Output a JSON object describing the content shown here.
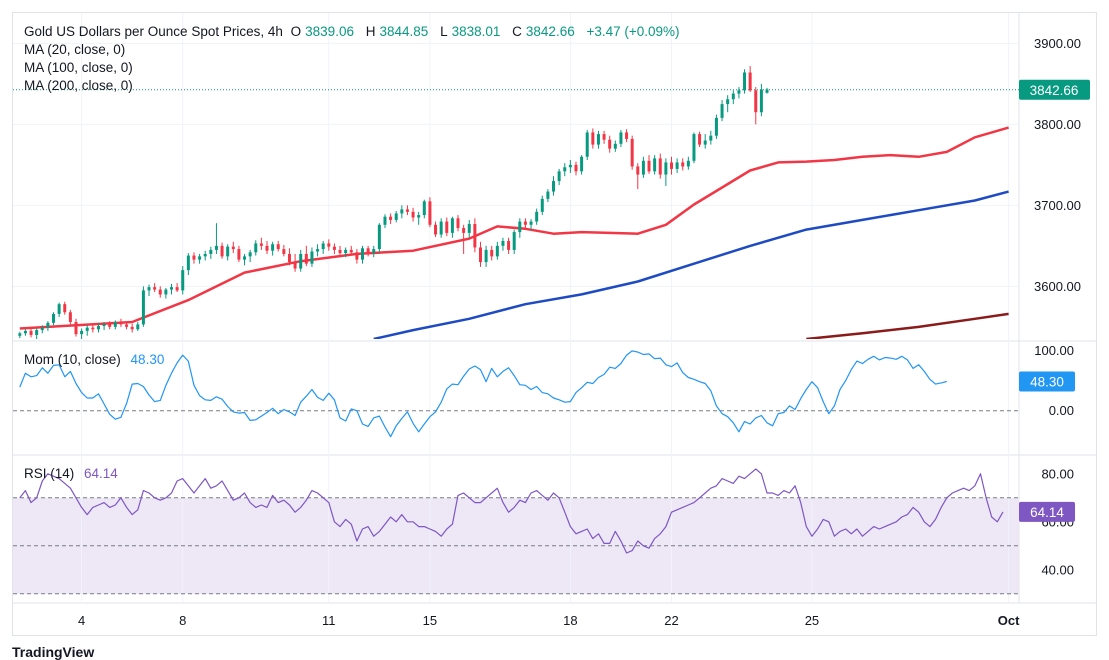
{
  "header": {
    "symbol": "Gold US Dollars per Ounce Spot Prices, 4h",
    "open_label": "O",
    "open": "3839.06",
    "high_label": "H",
    "high": "3844.85",
    "low_label": "L",
    "low": "3838.01",
    "close_label": "C",
    "close": "3842.66",
    "change": "+3.47 (+0.09%)",
    "ma20_label": "MA (20, close, 0)",
    "ma100_label": "MA (100, close, 0)",
    "ma200_label": "MA (200, close, 0)"
  },
  "colors": {
    "up": "#089981",
    "down": "#f23645",
    "ma20": "#f23645",
    "ma100": "#1e4bc3",
    "ma200": "#8b1a1a",
    "momentum": "#2196f3",
    "rsi": "#7e57c2",
    "rsi_band": "#ede7f6"
  },
  "footer": {
    "brand": "TradingView"
  },
  "chart_data": [
    {
      "type": "candlestick",
      "title": "Gold US Dollars per Ounce Spot Prices, 4h",
      "ylim": [
        3535,
        3935
      ],
      "y_ticks": [
        "3900.00",
        "3800.00",
        "3700.00",
        "3600.00"
      ],
      "y_tick_values": [
        3900,
        3800,
        3700,
        3600
      ],
      "x_ticks": [
        "4",
        "8",
        "11",
        "15",
        "18",
        "22",
        "25",
        "Oct"
      ],
      "x_tick_index": [
        11,
        29,
        55,
        73,
        98,
        116,
        141,
        176
      ],
      "last_price": "3842.66",
      "last_price_value": 3842.66,
      "candles": [
        [
          3539,
          3544,
          3536,
          3542
        ],
        [
          3542,
          3547,
          3539,
          3545
        ],
        [
          3545,
          3549,
          3537,
          3540
        ],
        [
          3540,
          3548,
          3535,
          3546
        ],
        [
          3546,
          3552,
          3542,
          3549
        ],
        [
          3549,
          3557,
          3545,
          3555
        ],
        [
          3555,
          3568,
          3552,
          3566
        ],
        [
          3566,
          3580,
          3562,
          3578
        ],
        [
          3578,
          3581,
          3565,
          3568
        ],
        [
          3568,
          3571,
          3553,
          3556
        ],
        [
          3556,
          3560,
          3538,
          3541
        ],
        [
          3541,
          3548,
          3534,
          3545
        ],
        [
          3545,
          3552,
          3539,
          3549
        ],
        [
          3549,
          3553,
          3543,
          3547
        ],
        [
          3547,
          3555,
          3543,
          3551
        ],
        [
          3551,
          3556,
          3546,
          3553
        ],
        [
          3553,
          3557,
          3547,
          3550
        ],
        [
          3550,
          3558,
          3547,
          3556
        ],
        [
          3556,
          3560,
          3550,
          3553
        ],
        [
          3553,
          3556,
          3547,
          3550
        ],
        [
          3550,
          3554,
          3543,
          3547
        ],
        [
          3547,
          3556,
          3545,
          3553
        ],
        [
          3553,
          3600,
          3550,
          3595
        ],
        [
          3595,
          3602,
          3588,
          3599
        ],
        [
          3599,
          3604,
          3593,
          3596
        ],
        [
          3596,
          3600,
          3586,
          3590
        ],
        [
          3590,
          3598,
          3585,
          3596
        ],
        [
          3596,
          3603,
          3590,
          3599
        ],
        [
          3599,
          3604,
          3593,
          3595
        ],
        [
          3595,
          3625,
          3590,
          3620
        ],
        [
          3620,
          3641,
          3614,
          3638
        ],
        [
          3638,
          3642,
          3628,
          3633
        ],
        [
          3633,
          3640,
          3628,
          3637
        ],
        [
          3637,
          3644,
          3632,
          3640
        ],
        [
          3640,
          3649,
          3634,
          3645
        ],
        [
          3645,
          3678,
          3640,
          3650
        ],
        [
          3650,
          3654,
          3634,
          3637
        ],
        [
          3637,
          3652,
          3632,
          3649
        ],
        [
          3649,
          3655,
          3641,
          3646
        ],
        [
          3646,
          3650,
          3630,
          3633
        ],
        [
          3633,
          3640,
          3626,
          3637
        ],
        [
          3637,
          3645,
          3630,
          3642
        ],
        [
          3642,
          3657,
          3638,
          3653
        ],
        [
          3653,
          3660,
          3645,
          3650
        ],
        [
          3650,
          3656,
          3640,
          3644
        ],
        [
          3644,
          3655,
          3638,
          3652
        ],
        [
          3652,
          3656,
          3643,
          3646
        ],
        [
          3646,
          3651,
          3637,
          3640
        ],
        [
          3640,
          3647,
          3626,
          3630
        ],
        [
          3630,
          3640,
          3618,
          3622
        ],
        [
          3622,
          3645,
          3618,
          3640
        ],
        [
          3640,
          3650,
          3625,
          3628
        ],
        [
          3628,
          3648,
          3624,
          3643
        ],
        [
          3643,
          3652,
          3637,
          3646
        ],
        [
          3646,
          3656,
          3640,
          3653
        ],
        [
          3653,
          3658,
          3644,
          3649
        ],
        [
          3649,
          3653,
          3640,
          3645
        ],
        [
          3645,
          3650,
          3637,
          3641
        ],
        [
          3641,
          3648,
          3636,
          3645
        ],
        [
          3645,
          3650,
          3638,
          3642
        ],
        [
          3642,
          3646,
          3628,
          3633
        ],
        [
          3633,
          3650,
          3628,
          3647
        ],
        [
          3647,
          3650,
          3637,
          3641
        ],
        [
          3641,
          3650,
          3636,
          3646
        ],
        [
          3646,
          3678,
          3641,
          3676
        ],
        [
          3676,
          3689,
          3672,
          3686
        ],
        [
          3686,
          3690,
          3677,
          3682
        ],
        [
          3682,
          3693,
          3679,
          3690
        ],
        [
          3690,
          3700,
          3684,
          3695
        ],
        [
          3695,
          3700,
          3688,
          3692
        ],
        [
          3692,
          3697,
          3680,
          3685
        ],
        [
          3685,
          3692,
          3676,
          3688
        ],
        [
          3688,
          3707,
          3684,
          3705
        ],
        [
          3705,
          3710,
          3673,
          3676
        ],
        [
          3676,
          3680,
          3661,
          3664
        ],
        [
          3664,
          3684,
          3660,
          3680
        ],
        [
          3680,
          3685,
          3662,
          3666
        ],
        [
          3666,
          3686,
          3660,
          3684
        ],
        [
          3684,
          3688,
          3668,
          3672
        ],
        [
          3672,
          3676,
          3640,
          3666
        ],
        [
          3666,
          3682,
          3660,
          3677
        ],
        [
          3677,
          3684,
          3642,
          3648
        ],
        [
          3648,
          3655,
          3624,
          3630
        ],
        [
          3630,
          3650,
          3624,
          3645
        ],
        [
          3645,
          3650,
          3632,
          3637
        ],
        [
          3637,
          3655,
          3633,
          3650
        ],
        [
          3650,
          3660,
          3644,
          3656
        ],
        [
          3656,
          3660,
          3640,
          3645
        ],
        [
          3645,
          3670,
          3640,
          3667
        ],
        [
          3667,
          3684,
          3660,
          3680
        ],
        [
          3680,
          3684,
          3672,
          3676
        ],
        [
          3676,
          3683,
          3670,
          3680
        ],
        [
          3680,
          3696,
          3676,
          3692
        ],
        [
          3692,
          3712,
          3688,
          3708
        ],
        [
          3708,
          3720,
          3704,
          3717
        ],
        [
          3717,
          3736,
          3712,
          3730
        ],
        [
          3730,
          3745,
          3725,
          3742
        ],
        [
          3742,
          3752,
          3736,
          3747
        ],
        [
          3747,
          3756,
          3740,
          3750
        ],
        [
          3750,
          3754,
          3737,
          3742
        ],
        [
          3742,
          3762,
          3738,
          3760
        ],
        [
          3760,
          3793,
          3756,
          3790
        ],
        [
          3790,
          3795,
          3770,
          3775
        ],
        [
          3775,
          3792,
          3770,
          3788
        ],
        [
          3788,
          3792,
          3776,
          3781
        ],
        [
          3781,
          3786,
          3765,
          3770
        ],
        [
          3770,
          3780,
          3766,
          3776
        ],
        [
          3776,
          3793,
          3772,
          3790
        ],
        [
          3790,
          3794,
          3778,
          3782
        ],
        [
          3782,
          3786,
          3744,
          3748
        ],
        [
          3748,
          3752,
          3720,
          3738
        ],
        [
          3738,
          3760,
          3734,
          3755
        ],
        [
          3755,
          3762,
          3739,
          3742
        ],
        [
          3742,
          3762,
          3738,
          3758
        ],
        [
          3758,
          3764,
          3733,
          3738
        ],
        [
          3738,
          3758,
          3724,
          3753
        ],
        [
          3753,
          3760,
          3738,
          3745
        ],
        [
          3745,
          3758,
          3740,
          3753
        ],
        [
          3753,
          3758,
          3743,
          3748
        ],
        [
          3748,
          3760,
          3744,
          3755
        ],
        [
          3755,
          3790,
          3752,
          3788
        ],
        [
          3788,
          3791,
          3772,
          3775
        ],
        [
          3775,
          3788,
          3770,
          3780
        ],
        [
          3780,
          3792,
          3775,
          3786
        ],
        [
          3786,
          3812,
          3782,
          3808
        ],
        [
          3808,
          3830,
          3804,
          3825
        ],
        [
          3825,
          3836,
          3815,
          3831
        ],
        [
          3831,
          3842,
          3825,
          3838
        ],
        [
          3838,
          3846,
          3832,
          3842
        ],
        [
          3842,
          3868,
          3838,
          3864
        ],
        [
          3864,
          3872,
          3840,
          3842
        ],
        [
          3842,
          3846,
          3800,
          3815
        ],
        [
          3815,
          3850,
          3810,
          3843
        ],
        [
          3839,
          3845,
          3838,
          3843
        ]
      ],
      "ma20": [
        [
          0,
          3548
        ],
        [
          10,
          3552
        ],
        [
          20,
          3556
        ],
        [
          30,
          3583
        ],
        [
          40,
          3617
        ],
        [
          50,
          3631
        ],
        [
          60,
          3640
        ],
        [
          70,
          3644
        ],
        [
          80,
          3659
        ],
        [
          85,
          3674
        ],
        [
          90,
          3671
        ],
        [
          95,
          3665
        ],
        [
          100,
          3667
        ],
        [
          105,
          3666
        ],
        [
          110,
          3665
        ],
        [
          115,
          3676
        ],
        [
          120,
          3701
        ],
        [
          125,
          3722
        ],
        [
          130,
          3743
        ],
        [
          135,
          3753
        ],
        [
          140,
          3754
        ],
        [
          145,
          3756
        ],
        [
          150,
          3760
        ],
        [
          155,
          3762
        ],
        [
          160,
          3760
        ],
        [
          165,
          3766
        ],
        [
          170,
          3784
        ],
        [
          176,
          3796
        ]
      ],
      "ma100": [
        [
          63,
          3535
        ],
        [
          70,
          3546
        ],
        [
          80,
          3560
        ],
        [
          90,
          3578
        ],
        [
          100,
          3590
        ],
        [
          110,
          3606
        ],
        [
          120,
          3628
        ],
        [
          130,
          3650
        ],
        [
          140,
          3670
        ],
        [
          150,
          3682
        ],
        [
          160,
          3694
        ],
        [
          170,
          3706
        ],
        [
          176,
          3717
        ]
      ],
      "ma200": [
        [
          140,
          3535
        ],
        [
          150,
          3542
        ],
        [
          160,
          3550
        ],
        [
          170,
          3560
        ],
        [
          176,
          3566
        ]
      ]
    },
    {
      "type": "line",
      "title": "Mom (10, close)",
      "last_value": "48.30",
      "last_value_num": 48.3,
      "ylim": [
        -70,
        112
      ],
      "y_ticks": [
        "100.00",
        "0.00"
      ],
      "y_tick_values": [
        100,
        0
      ],
      "zero_line": 0,
      "values": [
        39,
        62,
        56,
        58,
        71,
        62,
        75,
        76,
        56,
        65,
        45,
        30,
        21,
        21,
        28,
        11,
        -6,
        -14,
        -11,
        12,
        44,
        45,
        40,
        26,
        15,
        17,
        42,
        62,
        79,
        92,
        82,
        42,
        25,
        18,
        17,
        23,
        19,
        7,
        -2,
        -4,
        -3,
        -16,
        -15,
        -9,
        -3,
        4,
        -5,
        2,
        -2,
        -8,
        14,
        24,
        35,
        22,
        17,
        29,
        18,
        -12,
        -17,
        3,
        0,
        -22,
        -26,
        -12,
        -9,
        -27,
        -43,
        -25,
        -13,
        -2,
        -21,
        -35,
        -22,
        -10,
        -2,
        14,
        36,
        44,
        43,
        57,
        69,
        74,
        68,
        48,
        70,
        56,
        65,
        71,
        58,
        43,
        42,
        35,
        40,
        30,
        28,
        21,
        18,
        14,
        15,
        30,
        38,
        47,
        45,
        55,
        60,
        72,
        70,
        78,
        92,
        99,
        97,
        93,
        94,
        86,
        87,
        76,
        73,
        79,
        63,
        55,
        52,
        48,
        45,
        33,
        8,
        -5,
        -10,
        -20,
        -35,
        -18,
        -22,
        -12,
        -8,
        -20,
        -25,
        -5,
        -3,
        8,
        2,
        20,
        35,
        48,
        38,
        15,
        -5,
        8,
        35,
        50,
        68,
        82,
        78,
        85,
        90,
        84,
        88,
        87,
        85,
        90,
        84,
        70,
        76,
        65,
        52,
        44,
        46,
        48.3
      ]
    },
    {
      "type": "line",
      "title": "RSI (14)",
      "last_value": "64.14",
      "last_value_num": 64.14,
      "ylim": [
        27,
        87
      ],
      "y_ticks": [
        "80.00",
        "60.00",
        "40.00"
      ],
      "y_tick_values": [
        80,
        60,
        40
      ],
      "band": [
        30,
        70
      ],
      "midline": 50,
      "values": [
        70,
        73,
        68,
        70,
        77,
        80,
        79,
        78,
        76,
        74,
        70,
        66,
        63,
        66,
        67,
        68,
        66,
        67,
        70,
        66,
        63,
        65,
        73,
        72,
        70,
        69,
        70,
        72,
        77,
        78,
        75,
        72,
        75,
        78,
        74,
        75,
        77,
        73,
        69,
        70,
        72,
        68,
        66,
        67,
        66,
        71,
        68,
        69,
        67,
        64,
        66,
        69,
        73,
        72,
        70,
        68,
        60,
        58,
        61,
        59,
        52,
        57,
        58,
        54,
        56,
        59,
        62,
        60,
        63,
        60,
        60,
        58,
        58,
        57,
        56,
        54,
        57,
        59,
        71,
        72,
        70,
        68,
        68,
        70,
        72,
        74,
        68,
        64,
        66,
        69,
        68,
        72,
        73,
        71,
        69,
        72,
        70,
        64,
        58,
        55,
        56,
        57,
        53,
        55,
        51,
        51,
        56,
        52,
        47,
        48,
        52,
        50,
        49,
        53,
        55,
        58,
        64,
        65,
        66,
        67,
        68,
        70,
        72,
        74,
        75,
        78,
        77,
        76,
        79,
        78,
        80,
        82,
        80,
        72,
        72,
        71,
        73,
        72,
        75,
        68,
        58,
        54,
        57,
        61,
        60,
        54,
        56,
        57,
        55,
        57,
        54,
        56,
        58,
        57,
        58,
        59,
        60,
        62,
        63,
        66,
        64,
        60,
        58,
        61,
        66,
        70,
        72,
        73,
        74,
        73,
        75,
        80,
        70,
        62,
        60,
        64.14
      ]
    }
  ]
}
